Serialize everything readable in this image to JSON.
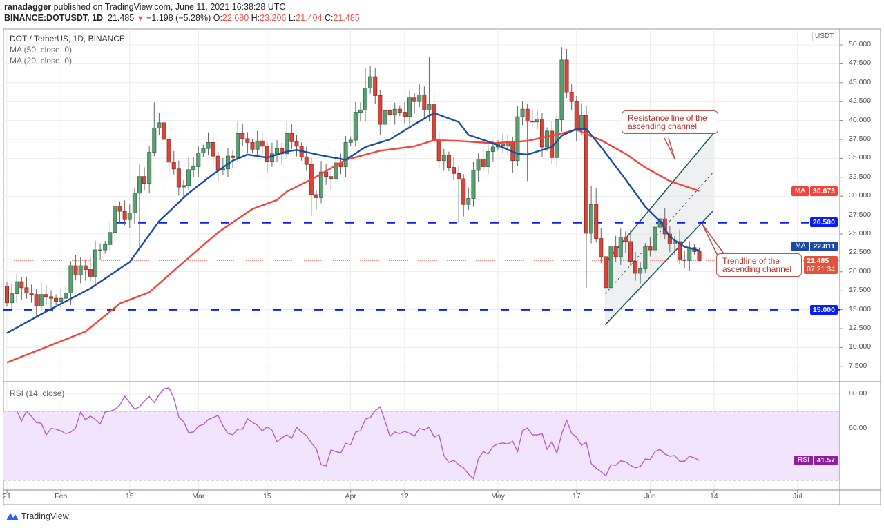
{
  "header": {
    "author": "ranadagger",
    "published": "published on TradingView.com, June 11, 2021 16:38:28 UTC",
    "symbol": "BINANCE:DOTUSDT, 1D",
    "last": "21.485",
    "change": "−1.198 (−5.28%)",
    "o_label": "O:",
    "o": "22.680",
    "h_label": "H:",
    "h": "23.206",
    "l_label": "L:",
    "l": "21.404",
    "c_label": "C:",
    "c": "21.485"
  },
  "legend": {
    "title": "DOT / TetherUS, 1D, BINANCE",
    "ma50": "MA (50, close, 0)",
    "ma20": "MA (20, close, 0)",
    "rsi": "RSI (14, close)"
  },
  "axis": {
    "currency": "USDT",
    "price_ticks": [
      "50.000",
      "47.500",
      "45.000",
      "42.500",
      "40.000",
      "37.500",
      "35.000",
      "32.500",
      "30.000",
      "27.500",
      "25.000",
      "22.500",
      "20.000",
      "17.500",
      "15.000",
      "12.500",
      "10.000",
      "7.500"
    ],
    "rsi_ticks": [
      "80.00",
      "60.00"
    ],
    "x_ticks": [
      {
        "label": "21",
        "day": 0
      },
      {
        "label": "Feb",
        "day": 11
      },
      {
        "label": "15",
        "day": 25
      },
      {
        "label": "Mar",
        "day": 39
      },
      {
        "label": "15",
        "day": 53
      },
      {
        "label": "Apr",
        "day": 70
      },
      {
        "label": "12",
        "day": 81
      },
      {
        "label": "May",
        "day": 100
      },
      {
        "label": "17",
        "day": 116
      },
      {
        "label": "Jun",
        "day": 131
      },
      {
        "label": "14",
        "day": 144
      },
      {
        "label": "Jul",
        "day": 161
      }
    ]
  },
  "tags": {
    "ma50_label": "MA",
    "ma50_value": "30.673",
    "resistance_value": "26.500",
    "ma20_label": "MA",
    "ma20_value": "22.811",
    "last_price": "21.485",
    "countdown": "07:21:34",
    "support_value": "15.000",
    "rsi_label": "RSI",
    "rsi_value": "41.57"
  },
  "annotations": {
    "resistance_callout": "Resistance line of the ascending channel",
    "trendline_callout": "Trendline of the ascending channel"
  },
  "colors": {
    "up": "#5d9f74",
    "up_border": "#2f6a45",
    "down": "#d8463b",
    "down_border": "#8e2b23",
    "ma50": "#f4433a",
    "ma20": "#1a4aa3",
    "hline": "#0a1df5",
    "rsi": "#b45cc8",
    "last_tag": "#e0533f",
    "ma20_tag": "#1a4aa3",
    "rsi_tag": "#8e1e9e"
  },
  "footer": {
    "brand": "TradingView"
  },
  "chart_data": {
    "type": "candlestick",
    "title": "DOT / TetherUS, 1D, BINANCE",
    "start_date": "2021-01-21",
    "ylim": [
      6.2,
      51.4
    ],
    "first_open": 18.1,
    "closes": [
      15.9,
      17.1,
      18.7,
      17.9,
      17.2,
      17.0,
      15.5,
      17.0,
      16.7,
      16.5,
      16.1,
      16.5,
      17.2,
      20.8,
      19.6,
      20.8,
      20.3,
      19.4,
      22.9,
      22.9,
      23.6,
      25.2,
      28.7,
      28.0,
      26.9,
      27.8,
      30.4,
      32.6,
      31.7,
      35.8,
      39.0,
      39.7,
      37.5,
      34.5,
      33.6,
      31.2,
      31.4,
      33.5,
      33.9,
      35.7,
      36.3,
      37.1,
      35.3,
      33.5,
      33.6,
      35.3,
      35.1,
      38.3,
      37.6,
      37.1,
      36.2,
      37.3,
      36.6,
      34.6,
      35.6,
      36.3,
      35.6,
      38.3,
      37.2,
      36.6,
      35.2,
      34.2,
      30.2,
      29.8,
      33.2,
      32.6,
      32.3,
      34.4,
      33.9,
      37.1,
      37.4,
      41.1,
      41.4,
      44.3,
      45.8,
      43.3,
      39.5,
      41.3,
      40.8,
      41.5,
      41.1,
      40.5,
      43.0,
      42.5,
      43.4,
      41.4,
      42.1,
      37.4,
      34.7,
      35.4,
      33.8,
      33.0,
      32.3,
      28.9,
      29.7,
      33.4,
      34.9,
      33.9,
      35.9,
      36.5,
      36.9,
      36.6,
      37.2,
      34.7,
      40.5,
      41.5,
      39.9,
      39.8,
      40.2,
      36.5,
      38.6,
      35.1,
      40.1,
      48.0,
      43.7,
      42.5,
      38.7,
      40.7,
      25.1,
      28.9,
      24.4,
      22.0,
      17.9,
      23.3,
      22.0,
      24.6,
      24.0,
      21.4,
      19.8,
      20.4,
      23.3,
      22.9,
      25.9,
      27.0,
      25.0,
      23.7,
      24.0,
      21.6,
      21.5,
      23.2,
      22.68,
      21.485
    ],
    "wick_overrides": {
      "27": {
        "l": 23.1
      },
      "30": {
        "h": 42.4
      },
      "32": {
        "l": 26.5
      },
      "62": {
        "l": 27.4
      },
      "73": {
        "h": 46.9
      },
      "86": {
        "h": 48.4
      },
      "92": {
        "l": 26.5
      },
      "106": {
        "l": 32.0
      },
      "112": {
        "l": 34.0
      },
      "113": {
        "h": 49.7
      },
      "118": {
        "l": 17.9
      },
      "119": {
        "h": 31.3
      },
      "120": {
        "h": 31.0
      },
      "122": {
        "l": 13.7
      },
      "141": {
        "h": 23.206,
        "l": 21.404
      }
    },
    "ma20": [
      [
        0,
        11.9
      ],
      [
        7,
        14.4
      ],
      [
        12,
        16.1
      ],
      [
        17,
        17.8
      ],
      [
        25,
        21.3
      ],
      [
        31,
        26.7
      ],
      [
        37,
        30.4
      ],
      [
        42,
        32.9
      ],
      [
        46,
        34.7
      ],
      [
        49,
        35.5
      ],
      [
        53,
        35.1
      ],
      [
        57,
        35.9
      ],
      [
        59,
        36.1
      ],
      [
        64,
        35.4
      ],
      [
        69,
        34.8
      ],
      [
        73,
        36.5
      ],
      [
        78,
        37.5
      ],
      [
        83,
        39.5
      ],
      [
        87,
        41.0
      ],
      [
        92,
        39.8
      ],
      [
        94,
        38.1
      ],
      [
        99,
        37.0
      ],
      [
        104,
        35.6
      ],
      [
        106,
        35.5
      ],
      [
        111,
        36.5
      ],
      [
        113,
        38.0
      ],
      [
        116,
        38.9
      ],
      [
        118,
        38.9
      ],
      [
        121,
        36.5
      ],
      [
        126,
        32.2
      ],
      [
        130,
        28.6
      ],
      [
        133,
        26.7
      ],
      [
        135,
        24.6
      ],
      [
        138,
        23.3
      ],
      [
        141,
        22.811
      ]
    ],
    "ma50": [
      [
        0,
        8.0
      ],
      [
        16,
        12.1
      ],
      [
        23,
        15.8
      ],
      [
        29,
        17.3
      ],
      [
        36,
        21.3
      ],
      [
        43,
        25.2
      ],
      [
        50,
        28.3
      ],
      [
        55,
        29.5
      ],
      [
        57,
        30.6
      ],
      [
        62,
        32.2
      ],
      [
        69,
        34.8
      ],
      [
        76,
        36.0
      ],
      [
        83,
        36.6
      ],
      [
        87,
        37.4
      ],
      [
        92,
        37.3
      ],
      [
        99,
        37.0
      ],
      [
        106,
        37.3
      ],
      [
        113,
        38.3
      ],
      [
        116,
        38.8
      ],
      [
        121,
        37.4
      ],
      [
        126,
        35.6
      ],
      [
        130,
        33.8
      ],
      [
        135,
        32.0
      ],
      [
        141,
        30.673
      ]
    ],
    "rsi": [
      70.4,
      64.4,
      70.1,
      67.1,
      63.5,
      63.1,
      56.4,
      60.1,
      59.7,
      58.7,
      57.1,
      58.0,
      60.4,
      69.7,
      65.1,
      67.3,
      65.3,
      62.7,
      69.7,
      70.1,
      71.1,
      73.7,
      78.8,
      75.1,
      71.3,
      72.7,
      76.1,
      78.7,
      75.1,
      79.7,
      83.1,
      83.7,
      77.7,
      66.7,
      64.0,
      57.7,
      58.0,
      61.5,
      62.4,
      65.3,
      66.4,
      67.7,
      61.7,
      57.3,
      56.4,
      59.7,
      59.7,
      65.7,
      63.7,
      62.0,
      58.7,
      61.1,
      59.1,
      52.4,
      54.7,
      56.4,
      54.4,
      60.8,
      58.1,
      56.0,
      51.7,
      48.4,
      39.1,
      38.4,
      47.7,
      46.7,
      46.0,
      51.5,
      50.7,
      58.0,
      58.8,
      65.5,
      66.4,
      70.4,
      72.7,
      64.4,
      55.5,
      58.1,
      57.1,
      58.4,
      57.3,
      55.7,
      60.1,
      59.3,
      60.8,
      55.1,
      56.4,
      44.4,
      40.4,
      41.7,
      39.1,
      37.3,
      33.7,
      31.1,
      42.4,
      46.7,
      45.3,
      49.7,
      51.1,
      51.7,
      51.1,
      52.7,
      46.7,
      58.8,
      60.4,
      56.4,
      56.4,
      57.1,
      48.0,
      52.4,
      45.7,
      57.1,
      64.8,
      57.3,
      55.1,
      50.4,
      52.0,
      39.7,
      37.1,
      35.1,
      32.7,
      39.1,
      38.7,
      41.3,
      40.8,
      38.7,
      37.3,
      38.1,
      42.4,
      42.1,
      46.7,
      48.0,
      45.3,
      44.0,
      44.4,
      41.1,
      41.1,
      44.0,
      43.1,
      41.57
    ],
    "rsi_bands": [
      30,
      70
    ],
    "horizontal_levels": [
      26.5,
      15.0
    ],
    "channel": {
      "start_day": 122,
      "end_day": 145,
      "lower": [
        13.0,
        28.1
      ],
      "middle": [
        17.1,
        33.2
      ],
      "upper": [
        21.2,
        38.3
      ]
    }
  }
}
